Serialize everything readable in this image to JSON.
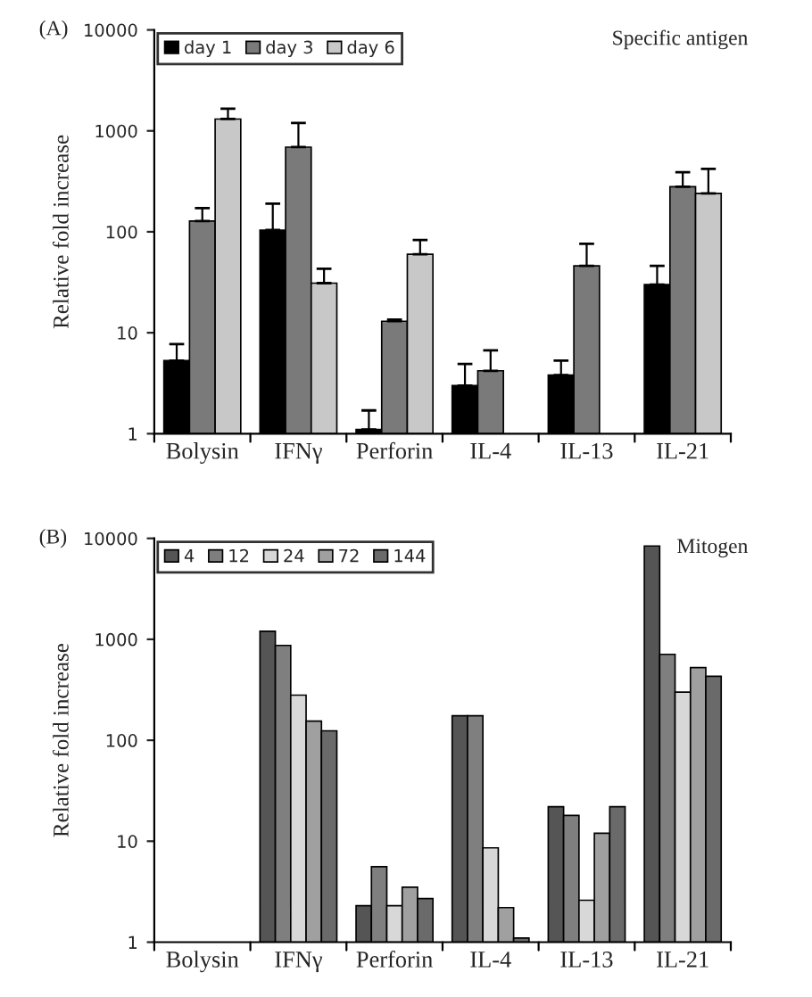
{
  "chart_data": [
    {
      "type": "bar",
      "title": "(A)",
      "ylabel": "Relative fold increase",
      "annotations": [
        "Specific antigen"
      ],
      "categories": [
        "Bolysin",
        "IFNγ",
        "Perforin",
        "IL-4",
        "IL-13",
        "IL-21"
      ],
      "series": [
        {
          "name": "day 1",
          "color": "#000000",
          "values": [
            5.3,
            104,
            1.1,
            3,
            3.8,
            30
          ],
          "errors": [
            [
              5.3,
              7.7
            ],
            [
              104,
              190
            ],
            [
              1.1,
              1.7
            ],
            [
              3,
              4.9
            ],
            [
              3.8,
              5.3
            ],
            [
              30,
              46
            ]
          ]
        },
        {
          "name": "day 3",
          "color": "#7a7a7a",
          "values": [
            128,
            690,
            13,
            4.2,
            46,
            280
          ],
          "errors": [
            [
              128,
              172
            ],
            [
              690,
              1200
            ],
            [
              13,
              13.5
            ],
            [
              4.2,
              6.7
            ],
            [
              46,
              76
            ],
            [
              280,
              390
            ]
          ]
        },
        {
          "name": "day 6",
          "color": "#c8c8c8",
          "values": [
            1310,
            31,
            60,
            null,
            null,
            240
          ],
          "errors": [
            [
              1310,
              1660
            ],
            [
              31,
              43
            ],
            [
              60,
              83
            ],
            null,
            null,
            [
              240,
              420
            ]
          ]
        }
      ],
      "log": true,
      "ylim": [
        1,
        10000
      ],
      "yticks": [
        1,
        10,
        100,
        1000,
        10000
      ],
      "legend": "top left",
      "grid": false
    },
    {
      "type": "bar",
      "title": "(B)",
      "ylabel": "Relative fold increase",
      "annotations": [
        "Mitogen"
      ],
      "categories": [
        "Bolysin",
        "IFNγ",
        "Perforin",
        "IL-4",
        "IL-13",
        "IL-21"
      ],
      "series": [
        {
          "name": "4",
          "color": "#555555",
          "values": [
            null,
            1200,
            2.3,
            175,
            22,
            8400
          ]
        },
        {
          "name": "12",
          "color": "#7f7f7f",
          "values": [
            null,
            870,
            5.6,
            175,
            18,
            710
          ]
        },
        {
          "name": "24",
          "color": "#d8d8d8",
          "values": [
            null,
            280,
            2.3,
            8.6,
            2.6,
            300
          ]
        },
        {
          "name": "72",
          "color": "#a0a0a0",
          "values": [
            null,
            155,
            3.5,
            2.2,
            12,
            525
          ]
        },
        {
          "name": "144",
          "color": "#6a6a6a",
          "values": [
            null,
            124,
            2.7,
            1.1,
            22,
            430
          ]
        }
      ],
      "log": true,
      "ylim": [
        1,
        10000
      ],
      "yticks": [
        1,
        10,
        100,
        1000,
        10000
      ],
      "legend": "top left",
      "grid": false
    }
  ]
}
